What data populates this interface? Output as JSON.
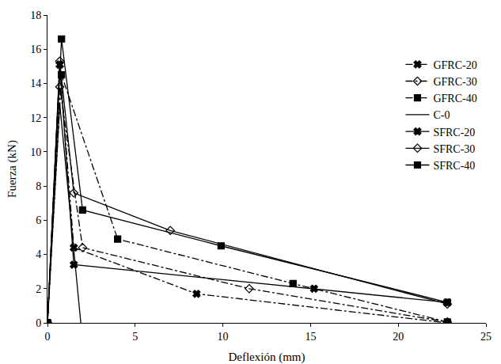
{
  "chart_data": {
    "type": "line",
    "x_label": "Deflexión (mm)",
    "y_label": "Fuerza (kN)",
    "xlim": [
      0,
      25
    ],
    "xticks": [
      0,
      5,
      10,
      15,
      20,
      25
    ],
    "ylim": [
      0,
      18
    ],
    "yticks": [
      0,
      2,
      4,
      6,
      8,
      10,
      12,
      14,
      16,
      18
    ],
    "grid": false,
    "legend": "right",
    "series": [
      {
        "name": "GFRC-20",
        "color": "#000000",
        "marker": "x",
        "line_style": "dashdot",
        "x": [
          0,
          0.7,
          1.5,
          8.5,
          22.8
        ],
        "values": [
          0,
          15.1,
          4.4,
          1.7,
          0
        ]
      },
      {
        "name": "GFRC-30",
        "color": "#000000",
        "marker": "diamond-open",
        "line_style": "dashdot",
        "x": [
          0,
          0.7,
          2.0,
          11.5,
          22.8
        ],
        "values": [
          0,
          13.8,
          4.4,
          2.0,
          0.05
        ]
      },
      {
        "name": "GFRC-40",
        "color": "#000000",
        "marker": "square",
        "line_style": "dashdot",
        "x": [
          0,
          0.8,
          4.0,
          14.0,
          22.8
        ],
        "values": [
          0,
          14.5,
          4.9,
          2.3,
          0.05
        ]
      },
      {
        "name": "C-0",
        "color": "#000000",
        "marker": "none",
        "line_style": "solid",
        "x": [
          0,
          0.7,
          1.9
        ],
        "values": [
          0,
          12.8,
          0
        ]
      },
      {
        "name": "SFRC-20",
        "color": "#000000",
        "marker": "x",
        "line_style": "solid",
        "x": [
          0,
          0.7,
          1.5,
          15.2,
          22.8
        ],
        "values": [
          0,
          15.1,
          3.4,
          2.0,
          1.2
        ]
      },
      {
        "name": "SFRC-30",
        "color": "#000000",
        "marker": "diamond-open",
        "line_style": "solid",
        "x": [
          0,
          0.7,
          1.5,
          7.0,
          22.8
        ],
        "values": [
          0,
          15.3,
          7.6,
          5.4,
          1.1
        ]
      },
      {
        "name": "SFRC-40",
        "color": "#000000",
        "marker": "square",
        "line_style": "solid",
        "x": [
          0,
          0.8,
          2.0,
          9.9,
          22.8
        ],
        "values": [
          0,
          16.6,
          6.6,
          4.5,
          1.2
        ]
      }
    ]
  }
}
